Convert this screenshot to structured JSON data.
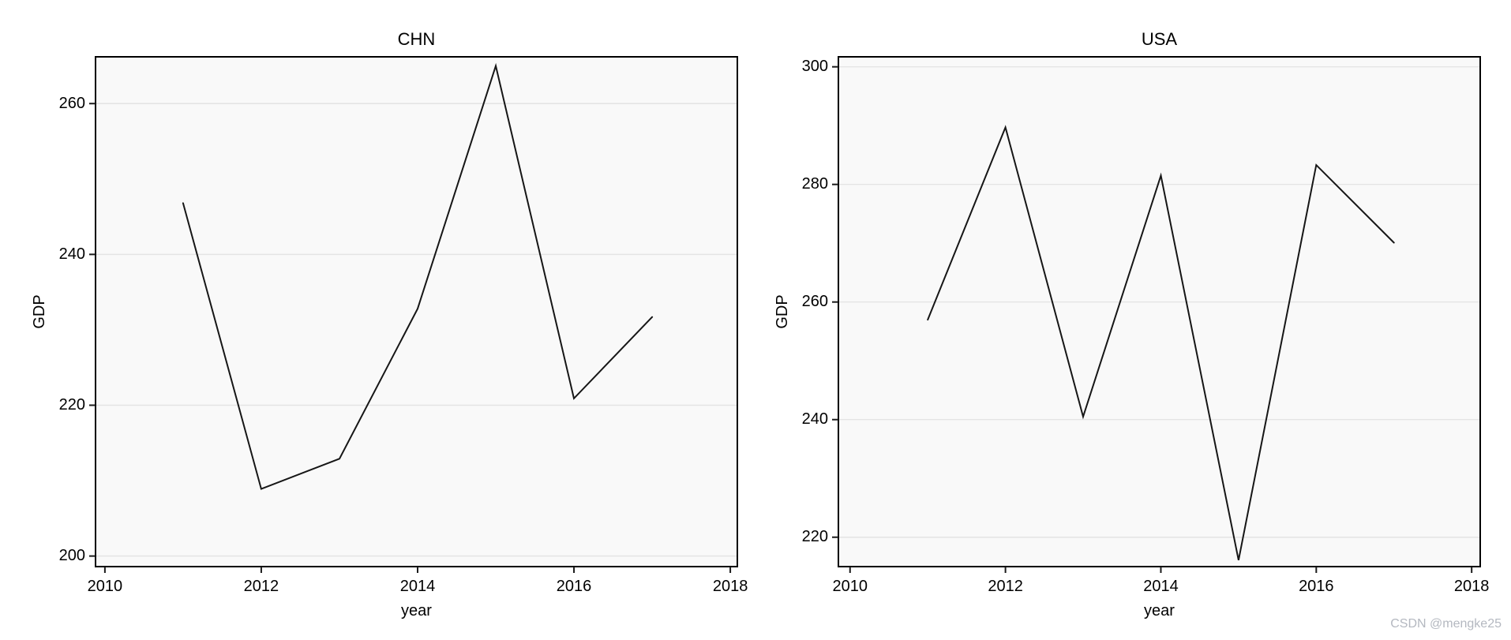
{
  "page": {
    "background": "#ffffff",
    "watermark": {
      "text": "CSDN @mengke25",
      "color": "#b4b8c0"
    }
  },
  "style": {
    "plot_bg": "#f9f9f9",
    "grid_color": "#e4e4e4",
    "frame_color": "#000000",
    "tick_color": "#1a1a1a",
    "line_width": 2,
    "text_color": "#000000"
  },
  "chart_data": [
    {
      "type": "line",
      "title": "CHN",
      "xlabel": "year",
      "ylabel": "GDP",
      "x": [
        2011,
        2012,
        2013,
        2014,
        2015,
        2016,
        2017
      ],
      "y": [
        246.8,
        208.9,
        212.9,
        232.8,
        265.0,
        220.9,
        231.7
      ],
      "x_ticks": [
        2010,
        2012,
        2014,
        2016,
        2018
      ],
      "y_ticks": [
        200,
        220,
        240,
        260
      ],
      "xlim": [
        2009.88,
        2018.09
      ],
      "ylim": [
        198.6,
        266.2
      ],
      "grid": true,
      "legend": "none",
      "line_color": "#161616"
    },
    {
      "type": "line",
      "title": "USA",
      "xlabel": "year",
      "ylabel": "GDP",
      "x": [
        2011,
        2012,
        2013,
        2014,
        2015,
        2016,
        2017
      ],
      "y": [
        257.0,
        289.7,
        240.5,
        281.5,
        216.1,
        283.3,
        270.1
      ],
      "x_ticks": [
        2010,
        2012,
        2014,
        2016,
        2018
      ],
      "y_ticks": [
        220,
        240,
        260,
        280,
        300
      ],
      "xlim": [
        2009.85,
        2018.11
      ],
      "ylim": [
        215.0,
        301.7
      ],
      "grid": true,
      "legend": "none",
      "line_color": "#161616"
    }
  ]
}
